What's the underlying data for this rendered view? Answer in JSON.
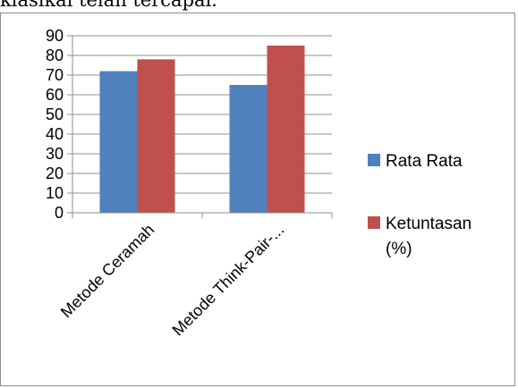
{
  "page_text": "klasikal telah tercapai.",
  "chart_data": {
    "type": "bar",
    "categories": [
      "Metode Ceramah",
      "Metode Think-Pair-..."
    ],
    "series": [
      {
        "name": "Rata Rata",
        "values": [
          72,
          65
        ],
        "color": "#4F81BD"
      },
      {
        "name": "Ketuntasan (%)",
        "values": [
          78,
          85
        ],
        "color": "#C0504D"
      }
    ],
    "title": "",
    "xlabel": "",
    "ylabel": "",
    "ylim": [
      0,
      90
    ],
    "yticks": [
      0,
      10,
      20,
      30,
      40,
      50,
      60,
      70,
      80,
      90
    ],
    "grid": true,
    "legend_position": "right"
  }
}
